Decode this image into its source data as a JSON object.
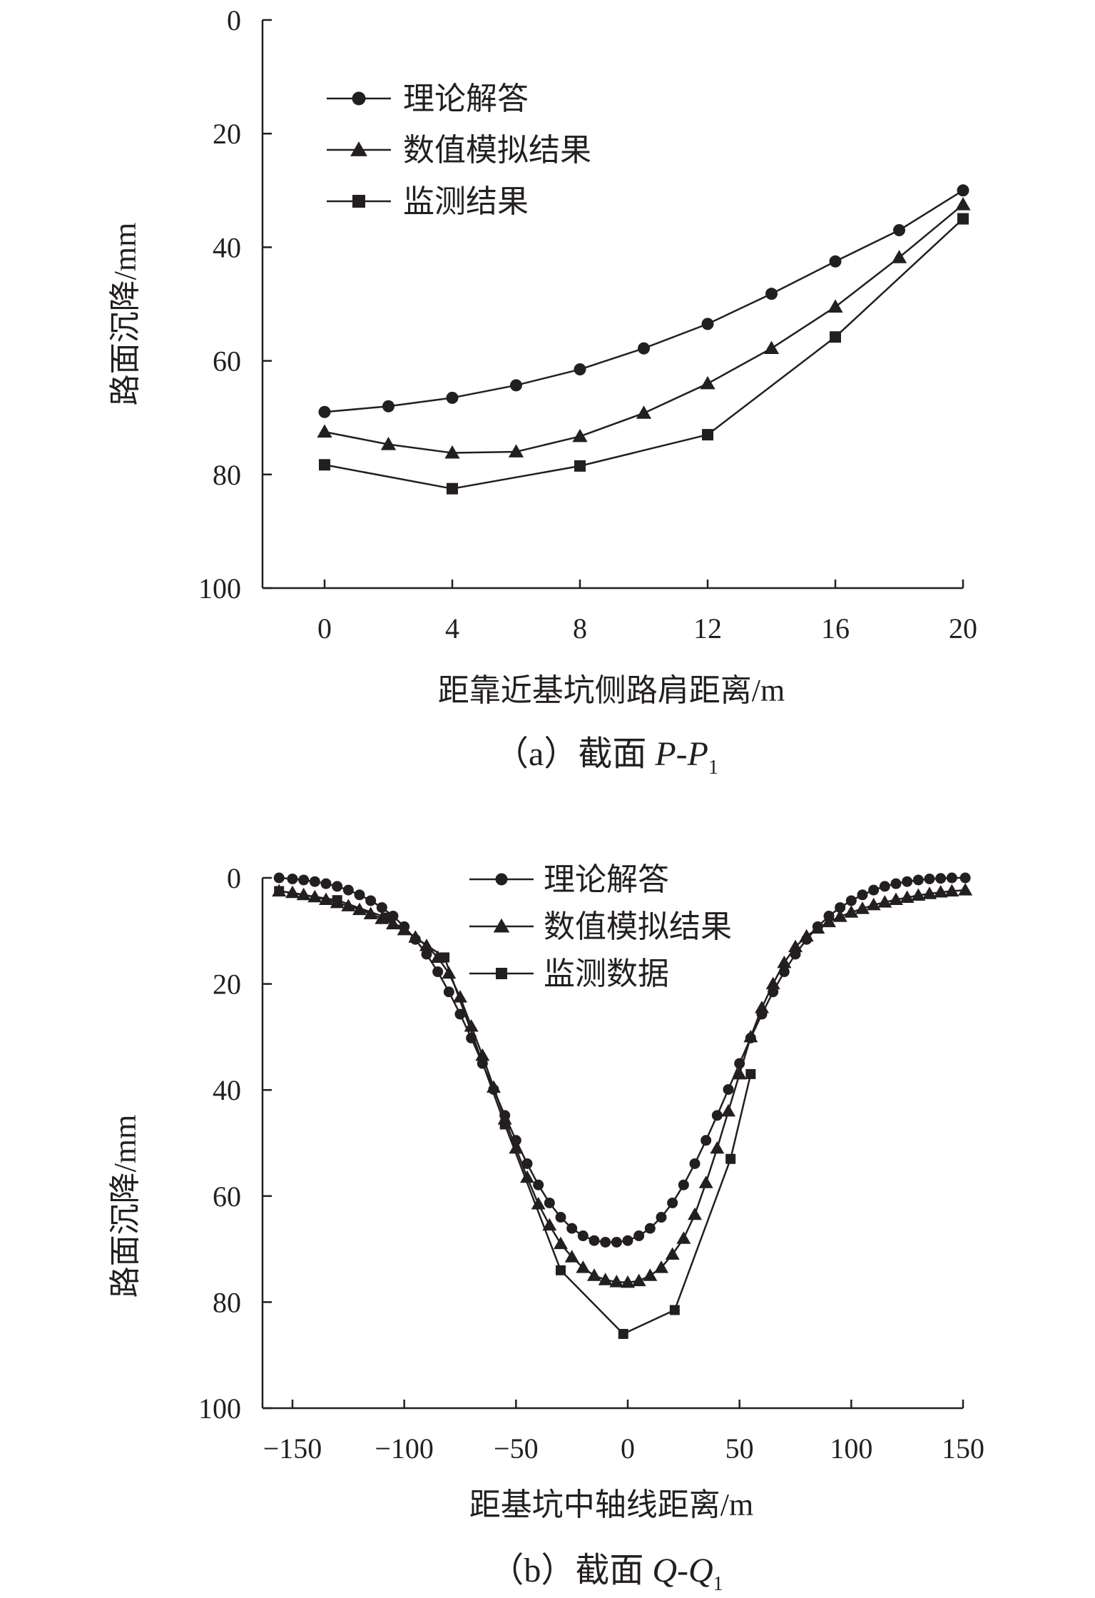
{
  "chart_data": [
    {
      "type": "line",
      "caption": {
        "prefix": "（a）截面 ",
        "var": "P-P",
        "sub": "1"
      },
      "xlabel": "距靠近基坑侧路肩距离/m",
      "ylabel": "路面沉降/mm",
      "xlim": [
        0,
        20
      ],
      "ylim": [
        0,
        100
      ],
      "y_inverted": true,
      "xticks": [
        "0",
        "4",
        "8",
        "12",
        "16",
        "20"
      ],
      "yticks": [
        "0",
        "20",
        "40",
        "60",
        "80",
        "100"
      ],
      "legend_position": "top-left",
      "series": [
        {
          "name": "理论解答",
          "marker": "circle",
          "x": [
            0,
            2,
            4,
            6,
            8,
            10,
            12,
            14,
            16,
            18,
            20
          ],
          "y": [
            69,
            68,
            66.5,
            64.3,
            61.5,
            57.8,
            53.5,
            48.2,
            42.5,
            37,
            30
          ]
        },
        {
          "name": "数值模拟结果",
          "marker": "triangle",
          "x": [
            0,
            2,
            4,
            6,
            8,
            10,
            12,
            14,
            16,
            18,
            20
          ],
          "y": [
            72.5,
            74.7,
            76.2,
            76,
            73.3,
            69.2,
            64,
            57.8,
            50.5,
            41.8,
            32.5
          ]
        },
        {
          "name": "监测结果",
          "marker": "square",
          "x": [
            0,
            4,
            8,
            12,
            16,
            20
          ],
          "y": [
            78.3,
            82.5,
            78.5,
            73,
            55.8,
            35
          ]
        }
      ]
    },
    {
      "type": "line",
      "caption": {
        "prefix": "（b）截面 ",
        "var": "Q-Q",
        "sub": "1"
      },
      "xlabel": "距基坑中轴线距离/m",
      "ylabel": "路面沉降/mm",
      "xlim": [
        -160,
        155
      ],
      "ylim": [
        0,
        100
      ],
      "y_inverted": true,
      "xticks": [
        "−150",
        "−100",
        "−50",
        "0",
        "50",
        "100",
        "150"
      ],
      "yticks": [
        "0",
        "20",
        "40",
        "60",
        "80",
        "100"
      ],
      "legend_position": "top-center",
      "series": [
        {
          "name": "理论解答",
          "marker": "circle",
          "x": [
            -156,
            -150,
            -145,
            -140,
            -135,
            -130,
            -125,
            -120,
            -115,
            -110,
            -105,
            -100,
            -95,
            -90,
            -85,
            -80,
            -75,
            -70,
            -65,
            -60,
            -55,
            -50,
            -45,
            -40,
            -35,
            -30,
            -25,
            -20,
            -15,
            -10,
            -5,
            0,
            5,
            10,
            15,
            20,
            25,
            30,
            35,
            40,
            45,
            50,
            55,
            60,
            65,
            70,
            75,
            80,
            85,
            90,
            95,
            100,
            105,
            110,
            115,
            120,
            125,
            130,
            135,
            140,
            145,
            151
          ],
          "y": [
            0,
            0.2,
            0.4,
            0.7,
            1.1,
            1.6,
            2.3,
            3.2,
            4.3,
            5.6,
            7.2,
            9.2,
            11.6,
            14.4,
            17.7,
            21.5,
            25.7,
            30.2,
            35,
            39.9,
            44.8,
            49.5,
            53.9,
            57.9,
            61.3,
            64,
            66.1,
            67.5,
            68.4,
            68.7,
            68.7,
            68.4,
            67.5,
            66.1,
            64,
            61.3,
            57.9,
            53.9,
            49.5,
            44.8,
            39.9,
            35,
            30.2,
            25.7,
            21.5,
            17.7,
            14.4,
            11.6,
            9.2,
            7.2,
            5.6,
            4.3,
            3.2,
            2.3,
            1.6,
            1.1,
            0.7,
            0.4,
            0.2,
            0.1,
            0,
            0
          ]
        },
        {
          "name": "数值模拟结果",
          "marker": "triangle",
          "x": [
            -156,
            -150,
            -145,
            -140,
            -135,
            -130,
            -125,
            -120,
            -115,
            -110,
            -105,
            -100,
            -95,
            -90,
            -85,
            -80,
            -75,
            -70,
            -65,
            -60,
            -55,
            -50,
            -45,
            -40,
            -35,
            -30,
            -25,
            -20,
            -15,
            -10,
            -5,
            0,
            5,
            10,
            15,
            20,
            25,
            30,
            35,
            40,
            45,
            50,
            55,
            60,
            65,
            70,
            75,
            80,
            85,
            90,
            95,
            100,
            105,
            110,
            115,
            120,
            125,
            130,
            135,
            140,
            145,
            151
          ],
          "y": [
            2.5,
            2.8,
            3.2,
            3.6,
            4.1,
            4.7,
            5.3,
            6,
            6.8,
            7.7,
            8.7,
            9.8,
            11.2,
            12.8,
            15,
            18,
            22.5,
            28,
            33.5,
            39.5,
            45.5,
            51,
            56.5,
            61.5,
            65.5,
            69,
            71.5,
            73.5,
            75,
            75.8,
            76.2,
            76.3,
            76,
            75,
            73.5,
            71,
            68,
            63.5,
            57.5,
            51,
            44,
            37,
            30,
            24.5,
            20,
            16,
            13,
            11,
            9.5,
            8.3,
            7.3,
            6.5,
            5.8,
            5.1,
            4.6,
            4.1,
            3.7,
            3.3,
            3,
            2.7,
            2.5,
            2.3
          ]
        },
        {
          "name": "监测数据",
          "marker": "square",
          "x": [
            -156,
            -130,
            -108,
            -82,
            -55,
            -30,
            -2,
            21,
            46,
            55
          ],
          "y": [
            2.5,
            4.2,
            7.5,
            15,
            46.5,
            74,
            86,
            81.5,
            53,
            37
          ]
        }
      ]
    }
  ]
}
